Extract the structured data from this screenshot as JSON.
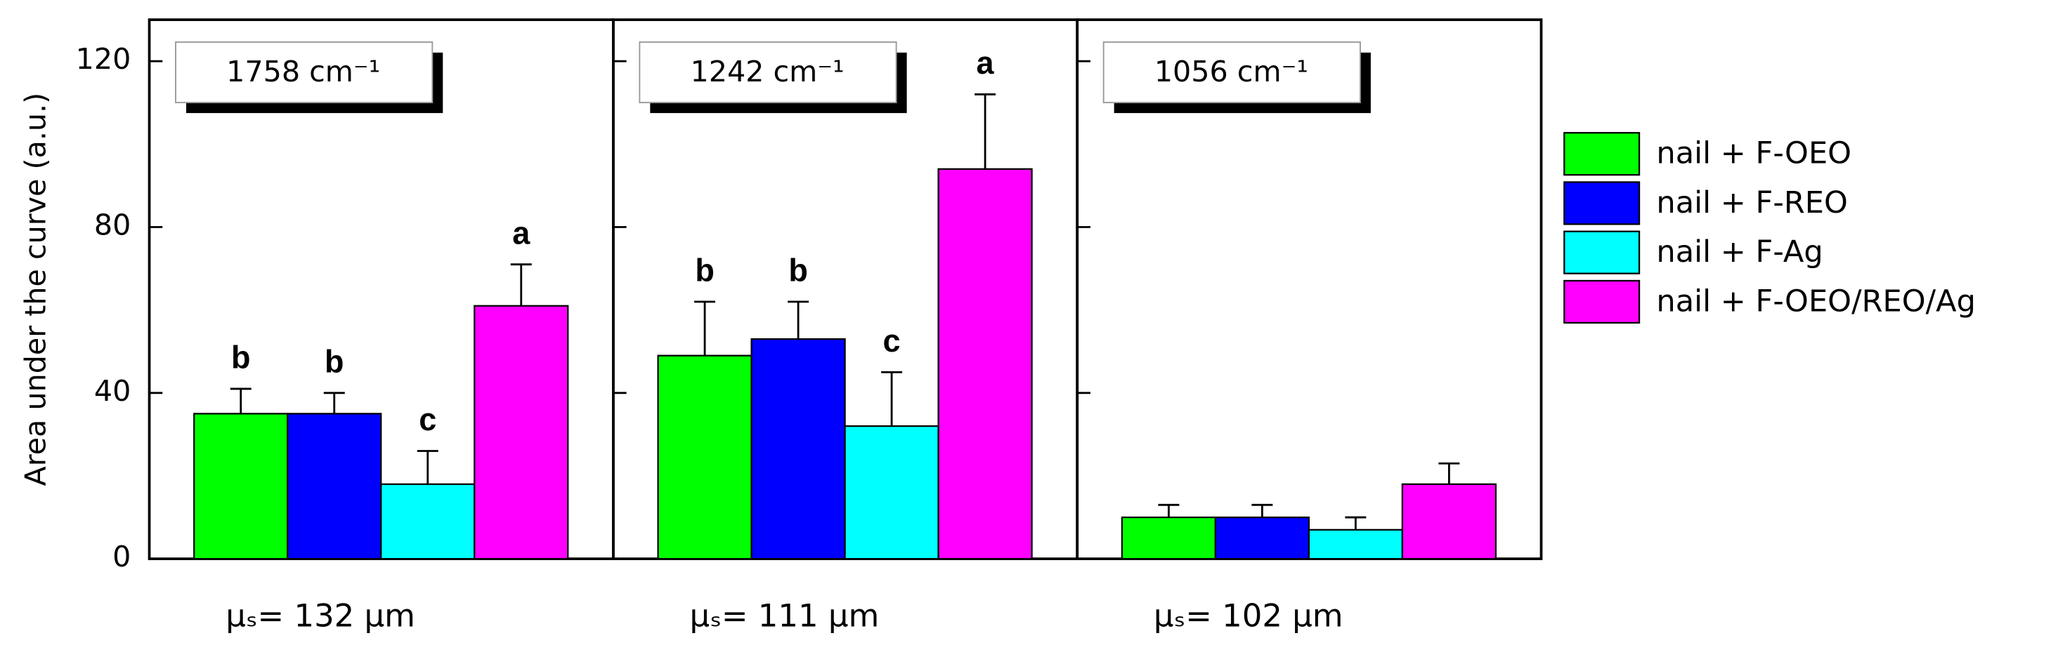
{
  "chart_data": [
    {
      "type": "bar",
      "title": "1758 cm⁻¹",
      "xlabel": "μₛ= 132 μm",
      "ylabel": "Area under the curve (a.u.)",
      "ylim": [
        0,
        130
      ],
      "yticks": [
        0,
        40,
        80,
        120
      ],
      "series": [
        {
          "name": "nail + F-OEO",
          "color": "#00ff00",
          "values": [
            35
          ],
          "errors": [
            6
          ],
          "letters": [
            "b"
          ]
        },
        {
          "name": "nail + F-REO",
          "color": "#0000ff",
          "values": [
            35
          ],
          "errors": [
            5
          ],
          "letters": [
            "b"
          ]
        },
        {
          "name": "nail + F-Ag",
          "color": "#00ffff",
          "values": [
            18
          ],
          "errors": [
            8
          ],
          "letters": [
            "c"
          ]
        },
        {
          "name": "nail + F-OEO/REO/Ag",
          "color": "#ff00ff",
          "values": [
            61
          ],
          "errors": [
            10
          ],
          "letters": [
            "a"
          ]
        }
      ]
    },
    {
      "type": "bar",
      "title": "1242 cm⁻¹",
      "xlabel": "μₛ= 111 μm",
      "ylim": [
        0,
        130
      ],
      "series": [
        {
          "color": "#00ff00",
          "values": [
            49
          ],
          "errors": [
            13
          ],
          "letters": [
            "b"
          ]
        },
        {
          "color": "#0000ff",
          "values": [
            53
          ],
          "errors": [
            9
          ],
          "letters": [
            "b"
          ]
        },
        {
          "color": "#00ffff",
          "values": [
            32
          ],
          "errors": [
            13
          ],
          "letters": [
            "c"
          ]
        },
        {
          "color": "#ff00ff",
          "values": [
            94
          ],
          "errors": [
            18
          ],
          "letters": [
            "a"
          ]
        }
      ]
    },
    {
      "type": "bar",
      "title": "1056 cm⁻¹",
      "xlabel": "μₛ= 102 μm",
      "ylim": [
        0,
        130
      ],
      "series": [
        {
          "color": "#00ff00",
          "values": [
            10
          ],
          "errors": [
            3
          ]
        },
        {
          "color": "#0000ff",
          "values": [
            10
          ],
          "errors": [
            3
          ]
        },
        {
          "color": "#00ffff",
          "values": [
            7
          ],
          "errors": [
            3
          ]
        },
        {
          "color": "#ff00ff",
          "values": [
            18
          ],
          "errors": [
            5
          ]
        }
      ]
    }
  ]
}
